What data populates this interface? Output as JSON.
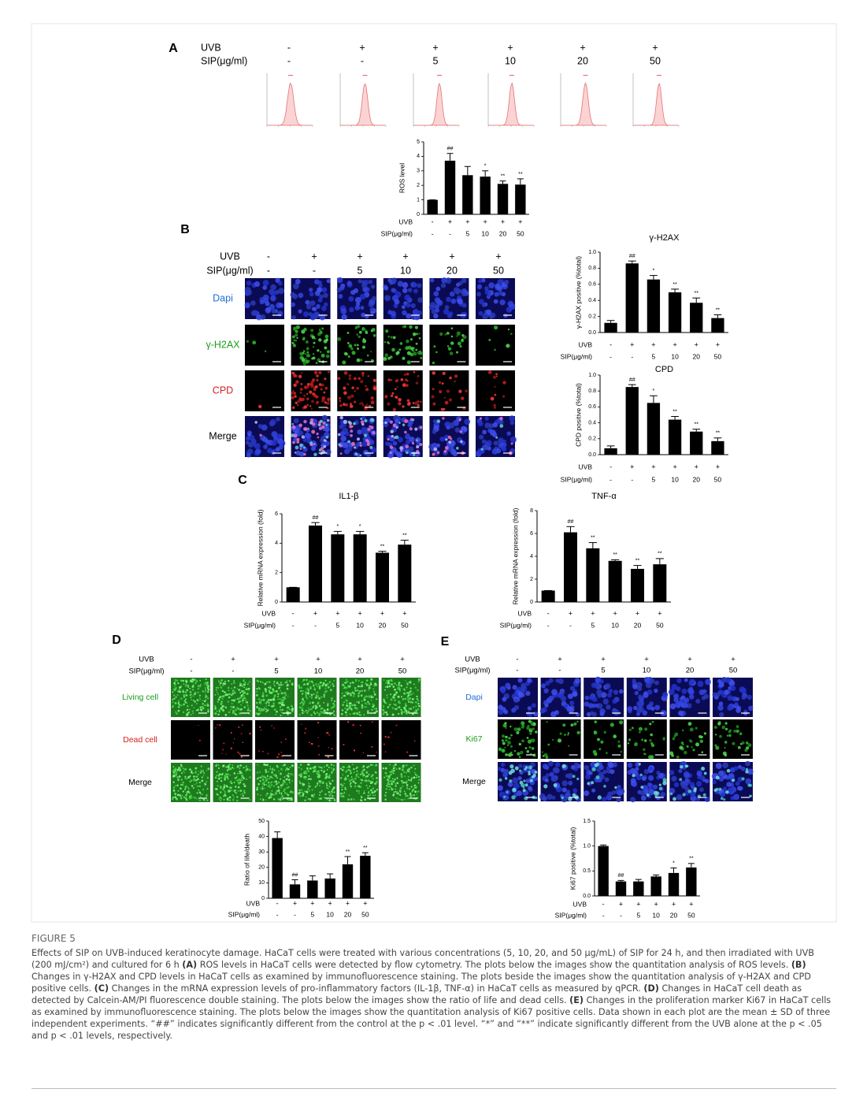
{
  "panels": {
    "A": {
      "letter": "A",
      "uvb_label": "UVB",
      "sip_label": "SIP(μg/ml)",
      "uvb": [
        "-",
        "+",
        "+",
        "+",
        "+",
        "+"
      ],
      "sip": [
        "-",
        "-",
        "5",
        "10",
        "20",
        "50"
      ]
    },
    "B": {
      "letter": "B",
      "uvb_label": "UVB",
      "sip_label": "SIP(μg/ml)",
      "uvb": [
        "-",
        "+",
        "+",
        "+",
        "+",
        "+"
      ],
      "sip": [
        "-",
        "-",
        "5",
        "10",
        "20",
        "50"
      ],
      "rows": [
        "Dapi",
        "γ-H2AX",
        "CPD",
        "Merge"
      ]
    },
    "C": {
      "letter": "C"
    },
    "D": {
      "letter": "D",
      "uvb_label": "UVB",
      "sip_label": "SIP(μg/ml)",
      "uvb": [
        "-",
        "+",
        "+",
        "+",
        "+",
        "+"
      ],
      "sip": [
        "-",
        "-",
        "5",
        "10",
        "20",
        "50"
      ],
      "rows": [
        "Living cell",
        "Dead cell",
        "Merge"
      ]
    },
    "E": {
      "letter": "E",
      "uvb_label": "UVB",
      "sip_label": "SIP(μg/ml)",
      "uvb": [
        "-",
        "+",
        "+",
        "+",
        "+",
        "+"
      ],
      "sip": [
        "-",
        "-",
        "5",
        "10",
        "20",
        "50"
      ],
      "rows": [
        "Dapi",
        "Ki67",
        "Merge"
      ]
    }
  },
  "chart_data": [
    {
      "type": "bar",
      "ylabel": "ROS level",
      "ylim": [
        0,
        5
      ],
      "yticks": [
        0,
        1,
        2,
        3,
        4,
        5
      ],
      "color": "#000000",
      "uvb_label": "UVB",
      "sip_label": "SIP(μg/ml)",
      "uvb": [
        "-",
        "+",
        "+",
        "+",
        "+",
        "+"
      ],
      "sip": [
        "-",
        "-",
        "5",
        "10",
        "20",
        "50"
      ],
      "values": [
        1,
        3.7,
        2.7,
        2.6,
        2.1,
        2.05
      ],
      "errors": [
        0,
        0.5,
        0.6,
        0.4,
        0.2,
        0.4
      ],
      "annotations": [
        null,
        "##",
        null,
        "*",
        "**",
        "**"
      ]
    },
    {
      "type": "bar",
      "title": "γ-H2AX",
      "ylabel": "γ-H2AX positive (%total)",
      "ylim": [
        0,
        1
      ],
      "yticks": [
        {
          "value": 0,
          "label": "0.0"
        },
        0.2,
        0.4,
        0.6,
        0.8,
        {
          "value": 1,
          "label": "1.0"
        }
      ],
      "color": "#000000",
      "uvb_label": "UVB",
      "sip_label": "SIP(μg/ml)",
      "uvb": [
        "-",
        "+",
        "+",
        "+",
        "+",
        "+"
      ],
      "sip": [
        "-",
        "-",
        "5",
        "10",
        "20",
        "50"
      ],
      "values": [
        0.12,
        0.86,
        0.66,
        0.5,
        0.37,
        0.18
      ],
      "errors": [
        0.03,
        0.03,
        0.05,
        0.04,
        0.06,
        0.04
      ],
      "annotations": [
        null,
        "##",
        "*",
        "**",
        "**",
        "**"
      ]
    },
    {
      "type": "bar",
      "title": "CPD",
      "ylabel": "CPD positive (%total)",
      "ylim": [
        0,
        1
      ],
      "yticks": [
        {
          "value": 0,
          "label": "0.0"
        },
        0.2,
        0.4,
        0.6,
        0.8,
        {
          "value": 1,
          "label": "1.0"
        }
      ],
      "color": "#000000",
      "uvb_label": "UVB",
      "sip_label": "SIP(μg/ml)",
      "uvb": [
        "-",
        "+",
        "+",
        "+",
        "+",
        "+"
      ],
      "sip": [
        "-",
        "-",
        "5",
        "10",
        "20",
        "50"
      ],
      "values": [
        0.08,
        0.85,
        0.65,
        0.44,
        0.29,
        0.17
      ],
      "errors": [
        0.03,
        0.03,
        0.09,
        0.04,
        0.03,
        0.04
      ],
      "annotations": [
        null,
        "##",
        "*",
        "**",
        "**",
        "**"
      ]
    },
    {
      "type": "bar",
      "title": "IL1-β",
      "ylabel": "Relative mRNA expression (fold)",
      "ylim": [
        0,
        6
      ],
      "yticks": [
        0,
        2,
        4,
        6
      ],
      "color": "#000000",
      "uvb_label": "UVB",
      "sip_label": "SIP(μg/ml)",
      "uvb": [
        "-",
        "+",
        "+",
        "+",
        "+",
        "+"
      ],
      "sip": [
        "-",
        "-",
        "5",
        "10",
        "20",
        "50"
      ],
      "values": [
        1,
        5.2,
        4.6,
        4.6,
        3.35,
        3.9
      ],
      "errors": [
        0,
        0.2,
        0.2,
        0.2,
        0.1,
        0.3
      ],
      "annotations": [
        null,
        "##",
        "*",
        "*",
        "**",
        "**"
      ]
    },
    {
      "type": "bar",
      "title": "TNF-α",
      "ylabel": "Relative mRNA expression (fold)",
      "ylim": [
        0,
        8
      ],
      "yticks": [
        0,
        2,
        4,
        6,
        8
      ],
      "color": "#000000",
      "uvb_label": "UVB",
      "sip_label": "SIP(μg/ml)",
      "uvb": [
        "-",
        "+",
        "+",
        "+",
        "+",
        "+"
      ],
      "sip": [
        "-",
        "-",
        "5",
        "10",
        "20",
        "50"
      ],
      "values": [
        1,
        6.1,
        4.7,
        3.6,
        2.9,
        3.3
      ],
      "errors": [
        0,
        0.5,
        0.5,
        0.1,
        0.3,
        0.5
      ],
      "annotations": [
        null,
        "##",
        "**",
        "**",
        "**",
        "**"
      ]
    },
    {
      "type": "bar",
      "ylabel": "Ratio of life/death",
      "ylim": [
        0,
        50
      ],
      "yticks": [
        0,
        10,
        20,
        30,
        40,
        50
      ],
      "color": "#000000",
      "uvb_label": "UVB",
      "sip_label": "SIP(μg/ml)",
      "uvb": [
        "-",
        "+",
        "+",
        "+",
        "+",
        "+"
      ],
      "sip": [
        "-",
        "-",
        "5",
        "10",
        "20",
        "50"
      ],
      "values": [
        39,
        9,
        11.5,
        12.8,
        22,
        27.5
      ],
      "errors": [
        4,
        3,
        3,
        3,
        5,
        2
      ],
      "annotations": [
        null,
        "##",
        null,
        null,
        "**",
        "**"
      ]
    },
    {
      "type": "bar",
      "ylabel": "Ki67 positive (%total)",
      "ylim": [
        0,
        1.5
      ],
      "yticks": [
        {
          "value": 0,
          "label": "0.0"
        },
        0.5,
        {
          "value": 1,
          "label": "1.0"
        },
        1.5
      ],
      "color": "#000000",
      "uvb_label": "UVB",
      "sip_label": "SIP(μg/ml)",
      "uvb": [
        "-",
        "+",
        "+",
        "+",
        "+",
        "+"
      ],
      "sip": [
        "-",
        "-",
        "5",
        "10",
        "20",
        "50"
      ],
      "values": [
        1.0,
        0.29,
        0.29,
        0.39,
        0.46,
        0.57
      ],
      "errors": [
        0.02,
        0.02,
        0.04,
        0.03,
        0.1,
        0.08
      ],
      "annotations": [
        null,
        "##",
        null,
        null,
        "*",
        "**"
      ]
    }
  ],
  "caption": {
    "label": "FIGURE 5",
    "parts": [
      "Effects of SIP on UVB-induced keratinocyte damage. HaCaT cells were treated with various concentrations (5, 10, 20, and 50 μg/mL) of SIP for 24 h, and then irradiated with UVB (200 mJ/cm²) and cultured for 6 h ",
      "(A)",
      " ROS levels in HaCaT cells were detected by flow cytometry. The plots below the images show the quantitation analysis of ROS levels. ",
      "(B)",
      " Changes in γ-H2AX and CPD levels in HaCaT cells as examined by immunofluorescence staining. The plots beside the images show the quantitation analysis of γ-H2AX and CPD positive cells. ",
      "(C)",
      " Changes in the mRNA expression levels of pro-inflammatory factors (IL-1β, TNF-α) in HaCaT cells as measured by qPCR. ",
      "(D)",
      " Changes in HaCaT cell death as detected by Calcein-AM/PI fluorescence double staining. The plots below the images show the ratio of life and dead cells. ",
      "(E)",
      " Changes in the proliferation marker Ki67 in HaCaT cells as examined by immunofluorescence staining. The plots below the images show the quantitation analysis of Ki67 positive cells. Data shown in each plot are the mean ± SD of three independent experiments. “##” indicates significantly different from the control at the p < .01 level. “*” and “**” indicate significantly different from the UVB alone at the p < .05 and p < .01 levels, respectively."
    ]
  }
}
